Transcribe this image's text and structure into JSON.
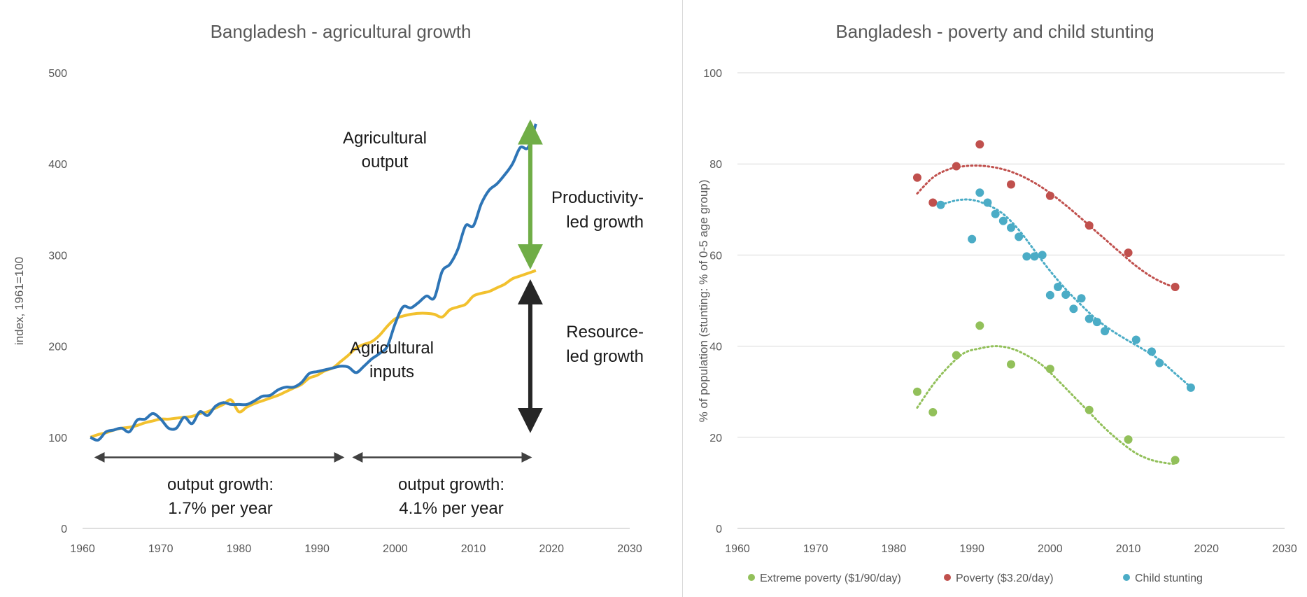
{
  "chart_data": [
    {
      "type": "line",
      "title": "Bangladesh -  agricultural growth",
      "xlabel": "",
      "ylabel": "index, 1961=100",
      "xlim": [
        1960,
        2030
      ],
      "ylim": [
        0,
        500
      ],
      "x_ticks": [
        "1960",
        "1970",
        "1980",
        "1990",
        "2000",
        "2010",
        "2020",
        "2030"
      ],
      "y_ticks": [
        "0",
        "100",
        "200",
        "300",
        "400",
        "500"
      ],
      "grid": false,
      "colors": {
        "output": "#2e75b6",
        "inputs": "#f2c12e",
        "productivity_arrow": "#70ad47",
        "resource_arrow": "#262626",
        "period_arrow": "#404040"
      },
      "series": [
        {
          "name": "Agricultural output",
          "x": [
            1961,
            1962,
            1963,
            1964,
            1965,
            1966,
            1967,
            1968,
            1969,
            1970,
            1971,
            1972,
            1973,
            1974,
            1975,
            1976,
            1977,
            1978,
            1979,
            1980,
            1981,
            1982,
            1983,
            1984,
            1985,
            1986,
            1987,
            1988,
            1989,
            1990,
            1991,
            1992,
            1993,
            1994,
            1995,
            1996,
            1997,
            1998,
            1999,
            2000,
            2001,
            2002,
            2003,
            2004,
            2005,
            2006,
            2007,
            2008,
            2009,
            2010,
            2011,
            2012,
            2013,
            2014,
            2015,
            2016,
            2017,
            2018
          ],
          "values": [
            100,
            97,
            106,
            108,
            110,
            106,
            119,
            120,
            126,
            120,
            110,
            110,
            122,
            115,
            128,
            124,
            134,
            138,
            136,
            136,
            136,
            140,
            145,
            146,
            152,
            155,
            155,
            160,
            170,
            172,
            174,
            176,
            178,
            177,
            171,
            178,
            186,
            192,
            200,
            225,
            243,
            242,
            248,
            255,
            253,
            282,
            290,
            306,
            332,
            332,
            356,
            371,
            378,
            388,
            400,
            418,
            418,
            444
          ]
        },
        {
          "name": "Agricultural inputs",
          "x": [
            1961,
            1962,
            1963,
            1964,
            1965,
            1966,
            1967,
            1968,
            1969,
            1970,
            1971,
            1972,
            1973,
            1974,
            1975,
            1976,
            1977,
            1978,
            1979,
            1980,
            1981,
            1982,
            1983,
            1984,
            1985,
            1986,
            1987,
            1988,
            1989,
            1990,
            1991,
            1992,
            1993,
            1994,
            1995,
            1996,
            1997,
            1998,
            1999,
            2000,
            2001,
            2002,
            2003,
            2004,
            2005,
            2006,
            2007,
            2008,
            2009,
            2010,
            2011,
            2012,
            2013,
            2014,
            2015,
            2016,
            2017,
            2018
          ],
          "values": [
            100,
            103,
            105,
            108,
            110,
            111,
            113,
            116,
            118,
            120,
            120,
            121,
            122,
            123,
            126,
            128,
            132,
            136,
            141,
            128,
            133,
            137,
            140,
            143,
            146,
            150,
            154,
            158,
            165,
            168,
            173,
            176,
            183,
            190,
            198,
            202,
            205,
            212,
            222,
            230,
            233,
            235,
            236,
            236,
            235,
            232,
            240,
            243,
            246,
            255,
            258,
            260,
            264,
            268,
            274,
            277,
            280,
            283
          ]
        }
      ],
      "annotations": {
        "output_label_1": "Agricultural",
        "output_label_2": "output",
        "inputs_label_1": "Agricultural",
        "inputs_label_2": "inputs",
        "productivity_1": "Productivity-",
        "productivity_2": "led growth",
        "resource_1": "Resource-",
        "resource_2": "led growth",
        "period1_line1": "output growth:",
        "period1_line2": "1.7% per year",
        "period2_line1": "output growth:",
        "period2_line2": "4.1% per year"
      },
      "arrows": {
        "productivity_led": {
          "x": 2018,
          "from": 455,
          "to": 278
        },
        "resource_led": {
          "x": 2018,
          "from": 278,
          "to": 100
        },
        "period1": {
          "y": 78,
          "from": 1961,
          "to": 1994
        },
        "period2": {
          "y": 78,
          "from": 1994,
          "to": 2018
        }
      }
    },
    {
      "type": "scatter",
      "title": "Bangladesh - poverty and child stunting",
      "xlabel": "",
      "ylabel": "% of population (stunting: % of 0-5 age group)",
      "xlim": [
        1960,
        2030
      ],
      "ylim": [
        0,
        100
      ],
      "x_ticks": [
        "1960",
        "1970",
        "1980",
        "1990",
        "2000",
        "2010",
        "2020",
        "2030"
      ],
      "y_ticks": [
        "0",
        "20",
        "40",
        "60",
        "80",
        "100"
      ],
      "grid": true,
      "legend": "bottom",
      "series": [
        {
          "name": "Extreme poverty ($1/90/day)",
          "color": "#92c05a",
          "x": [
            1983,
            1985,
            1988,
            1991,
            1995,
            2000,
            2005,
            2010,
            2016
          ],
          "values": [
            30,
            25.5,
            38,
            44.5,
            36,
            35,
            26,
            19.5,
            15
          ],
          "trend_x": [
            1983,
            1985,
            1987,
            1989,
            1991,
            1993,
            1995,
            1997,
            1999,
            2001,
            2003,
            2005,
            2007,
            2009,
            2011,
            2013,
            2015,
            2016
          ],
          "trend": [
            26.5,
            31.5,
            35.5,
            38.5,
            39.5,
            40,
            39.5,
            38,
            35.8,
            32.5,
            29,
            25.5,
            22,
            19,
            16.5,
            15,
            14.3,
            14.2
          ]
        },
        {
          "name": "Poverty ($3.20/day)",
          "color": "#c0504d",
          "x": [
            1983,
            1985,
            1988,
            1991,
            1995,
            2000,
            2005,
            2010,
            2016
          ],
          "values": [
            77,
            71.5,
            79.5,
            84.3,
            75.5,
            73,
            66.5,
            60.5,
            53
          ],
          "trend_x": [
            1983,
            1985,
            1987,
            1989,
            1991,
            1993,
            1995,
            1997,
            1999,
            2001,
            2003,
            2005,
            2007,
            2009,
            2011,
            2013,
            2015,
            2016
          ],
          "trend": [
            73.5,
            77,
            78.8,
            79.5,
            79.6,
            79.2,
            78.3,
            76.8,
            74.8,
            72.3,
            69.5,
            66.5,
            63.5,
            60.5,
            57.6,
            55.2,
            53.5,
            53
          ]
        },
        {
          "name": "Child stunting",
          "color": "#4bacc6",
          "x": [
            1986,
            1990,
            1991,
            1992,
            1993,
            1994,
            1995,
            1996,
            1997,
            1998,
            1999,
            2000,
            2001,
            2002,
            2003,
            2004,
            2005,
            2006,
            2007,
            2011,
            2013,
            2014,
            2018
          ],
          "values": [
            71,
            63.5,
            73.7,
            71.5,
            69,
            67.5,
            66,
            64,
            59.7,
            59.7,
            60,
            51.2,
            53,
            51.3,
            48.2,
            50.5,
            46,
            45.3,
            43.3,
            41.4,
            38.8,
            36.3,
            30.9
          ],
          "trend_x": [
            1986,
            1988,
            1990,
            1992,
            1994,
            1996,
            1998,
            2000,
            2002,
            2004,
            2006,
            2008,
            2010,
            2012,
            2014,
            2016,
            2018
          ],
          "trend": [
            71,
            72,
            72.1,
            71,
            69,
            65.5,
            61,
            56.5,
            52.5,
            49,
            45.8,
            43.3,
            41.2,
            39.2,
            37,
            34,
            31
          ]
        }
      ]
    }
  ]
}
